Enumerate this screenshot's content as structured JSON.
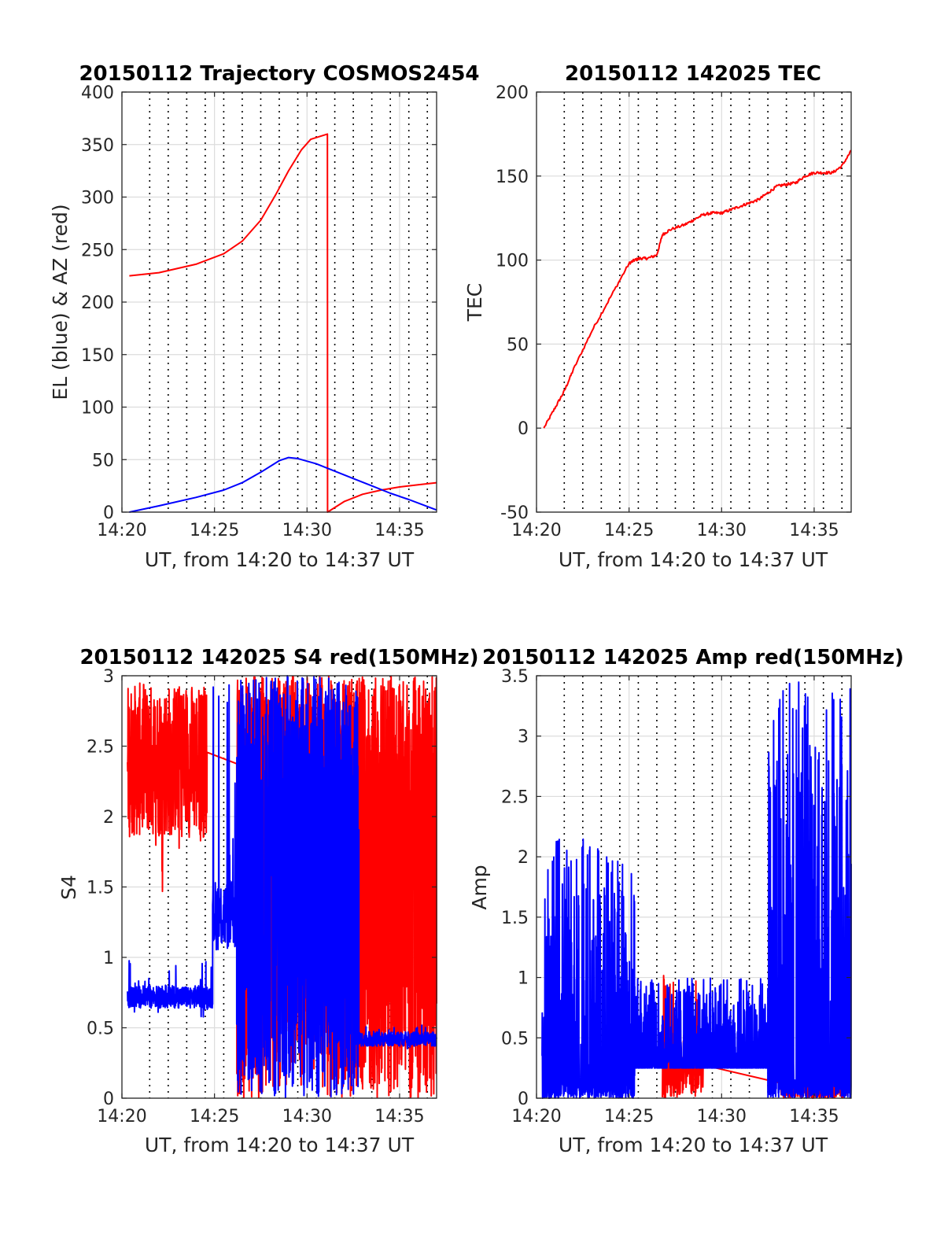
{
  "panels": [
    {
      "id": "trajectory",
      "title": "20150112 Trajectory COSMOS2454",
      "xlabel": "UT, from 14:20 to 14:37 UT",
      "ylabel": "EL (blue) & AZ (red)",
      "xtick_labels": [
        "14:20",
        "14:25",
        "14:30",
        "14:35"
      ],
      "ytick_labels": [
        "0",
        "50",
        "100",
        "150",
        "200",
        "250",
        "300",
        "350",
        "400"
      ]
    },
    {
      "id": "tec",
      "title": "20150112 142025 TEC",
      "xlabel": "UT, from 14:20 to 14:37 UT",
      "ylabel": "TEC",
      "xtick_labels": [
        "14:20",
        "14:25",
        "14:30",
        "14:35"
      ],
      "ytick_labels": [
        "-50",
        "0",
        "50",
        "100",
        "150",
        "200"
      ]
    },
    {
      "id": "s4",
      "title": "20150112 142025 S4 red(150MHz)",
      "xlabel": "UT, from 14:20 to 14:37 UT",
      "ylabel": "S4",
      "xtick_labels": [
        "14:20",
        "14:25",
        "14:30",
        "14:35"
      ],
      "ytick_labels": [
        "0",
        "0.5",
        "1",
        "1.5",
        "2",
        "2.5",
        "3"
      ]
    },
    {
      "id": "amp",
      "title": "20150112 142025 Amp red(150MHz)",
      "xlabel": "UT, from 14:20 to 14:37 UT",
      "ylabel": "Amp",
      "xtick_labels": [
        "14:20",
        "14:25",
        "14:30",
        "14:35"
      ],
      "ytick_labels": [
        "0",
        "0.5",
        "1",
        "1.5",
        "2",
        "2.5",
        "3",
        "3.5"
      ]
    }
  ],
  "colors": {
    "red": "#ff0000",
    "blue": "#0000ff",
    "axis": "#262626",
    "grid": "#dcdcdc"
  },
  "chart_data": [
    {
      "type": "line",
      "xlim": [
        0,
        17
      ],
      "ylim": [
        0,
        400
      ],
      "x_unit": "minutes after 14:20 UT",
      "vertical_dotted_grid_minutes": [
        1.5,
        2.5,
        3.5,
        4.5,
        5.5,
        6.5,
        7.5,
        8.5,
        9.5,
        10.5,
        11.5,
        12.5,
        13.5,
        14.5,
        15.5,
        16.5
      ],
      "series": [
        {
          "color": "red",
          "x": [
            0.4,
            2,
            4,
            5.5,
            6.5,
            7.5,
            8.3,
            9,
            9.7,
            10.2,
            11.1,
            11.11,
            12,
            13,
            14,
            15,
            16,
            17
          ],
          "y": [
            225,
            228,
            236,
            246,
            258,
            278,
            302,
            325,
            345,
            355,
            360,
            0,
            10,
            17,
            21,
            24,
            26,
            28
          ]
        },
        {
          "color": "blue",
          "x": [
            0.4,
            2,
            4,
            5.5,
            6.5,
            7.5,
            8.5,
            9,
            9.5,
            10.5,
            11.5,
            12.5,
            13.5,
            14.5,
            15.5,
            17
          ],
          "y": [
            0,
            6,
            14,
            21,
            28,
            38,
            49,
            52,
            51,
            46,
            39,
            32,
            25,
            18,
            12,
            2
          ]
        }
      ]
    },
    {
      "type": "line",
      "xlim": [
        0,
        17
      ],
      "ylim": [
        -50,
        200
      ],
      "x_unit": "minutes after 14:20 UT",
      "series": [
        {
          "color": "red",
          "x": [
            0.4,
            1,
            1.5,
            2,
            3,
            4,
            5,
            5.3,
            5.6,
            6,
            6.5,
            6.8,
            7.2,
            8,
            8.5,
            9,
            9.5,
            10,
            10.5,
            11,
            11.5,
            12,
            12.5,
            13,
            13.5,
            14,
            14.5,
            15,
            15.5,
            16,
            16.5,
            17
          ],
          "y": [
            0,
            12,
            22,
            35,
            58,
            78,
            98,
            100,
            101,
            101,
            103,
            115,
            118,
            121,
            124,
            127,
            128,
            128,
            130,
            132,
            134,
            136,
            140,
            144,
            145,
            146,
            150,
            152,
            152,
            152,
            156,
            165
          ]
        }
      ]
    },
    {
      "type": "line",
      "xlim": [
        0,
        17
      ],
      "ylim": [
        0,
        3
      ],
      "x_unit": "minutes after 14:20 UT",
      "series": [
        {
          "color": "red",
          "segments": [
            {
              "x_range": [
                0.3,
                4.6
              ],
              "level": 2.4,
              "spread": 0.55,
              "min": 1.45,
              "max": 3
            },
            {
              "x_range": [
                6.2,
                17
              ],
              "mode": "full-range noise",
              "min": 0,
              "max": 3
            }
          ]
        },
        {
          "color": "blue",
          "segments": [
            {
              "x_range": [
                0.3,
                4.9
              ],
              "level": 0.72,
              "spread": 0.08,
              "min": 0.55,
              "max": 1.0
            },
            {
              "x_range": [
                4.9,
                6.2
              ],
              "level": 1.3,
              "spread": 0.25,
              "min": 0.85,
              "max": 3
            },
            {
              "x_range": [
                6.2,
                12.8
              ],
              "mode": "full-range noise",
              "min": 0,
              "max": 3
            },
            {
              "x_range": [
                12.8,
                17
              ],
              "level": 0.42,
              "spread": 0.05,
              "min": 0.33,
              "max": 0.52
            }
          ]
        }
      ]
    },
    {
      "type": "line",
      "xlim": [
        0,
        17
      ],
      "ylim": [
        0,
        3.5
      ],
      "x_unit": "minutes after 14:20 UT",
      "series": [
        {
          "color": "red",
          "segments": [
            {
              "x_range": [
                6.8,
                9.0
              ],
              "mode": "bursts",
              "min": 0,
              "max": 1.12
            },
            {
              "x_range": [
                13.2,
                16.8
              ],
              "mode": "baseline",
              "min": 0,
              "max": 0.15
            }
          ]
        },
        {
          "color": "blue",
          "segments": [
            {
              "x_range": [
                0.3,
                5.3
              ],
              "mode": "dense noise",
              "min": 0,
              "max": 2.15
            },
            {
              "x_range": [
                5.3,
                12.5
              ],
              "mode": "noise",
              "min": 0.25,
              "max": 1.0
            },
            {
              "x_range": [
                12.5,
                17
              ],
              "mode": "dense noise",
              "min": 0,
              "max": 3.45
            }
          ]
        }
      ]
    }
  ]
}
